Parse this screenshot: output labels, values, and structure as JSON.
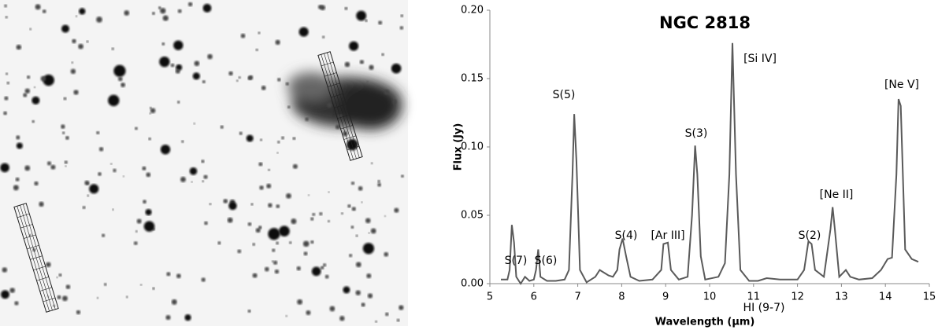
{
  "chart_data": {
    "type": "line",
    "title": "NGC 2818",
    "x_label": "Wavelength (μm)",
    "y_label": "Flux (Jy)",
    "x": [
      5.25,
      5.4,
      5.45,
      5.5,
      5.55,
      5.6,
      5.7,
      5.8,
      5.9,
      6.0,
      6.05,
      6.1,
      6.15,
      6.3,
      6.5,
      6.7,
      6.8,
      6.88,
      6.92,
      6.97,
      7.05,
      7.2,
      7.4,
      7.5,
      7.6,
      7.7,
      7.8,
      7.9,
      7.95,
      8.02,
      8.1,
      8.2,
      8.4,
      8.7,
      8.9,
      8.95,
      9.05,
      9.12,
      9.3,
      9.5,
      9.6,
      9.67,
      9.72,
      9.8,
      9.9,
      10.2,
      10.35,
      10.45,
      10.52,
      10.6,
      10.7,
      10.9,
      11.1,
      11.3,
      11.6,
      12.0,
      12.15,
      12.25,
      12.32,
      12.4,
      12.6,
      12.75,
      12.8,
      12.85,
      12.95,
      13.1,
      13.2,
      13.4,
      13.7,
      13.9,
      14.05,
      14.15,
      14.25,
      14.3,
      14.35,
      14.45,
      14.6,
      14.75
    ],
    "series": [
      {
        "color": "#5a5a5a",
        "values": [
          0.003,
          0.003,
          0.01,
          0.043,
          0.03,
          0.005,
          0.0,
          0.005,
          0.002,
          0.003,
          0.01,
          0.025,
          0.005,
          0.002,
          0.002,
          0.003,
          0.01,
          0.08,
          0.124,
          0.09,
          0.01,
          0.001,
          0.005,
          0.01,
          0.008,
          0.006,
          0.005,
          0.01,
          0.025,
          0.033,
          0.02,
          0.005,
          0.002,
          0.003,
          0.01,
          0.029,
          0.03,
          0.01,
          0.003,
          0.005,
          0.05,
          0.101,
          0.08,
          0.02,
          0.003,
          0.005,
          0.015,
          0.08,
          0.176,
          0.08,
          0.01,
          0.002,
          0.002,
          0.004,
          0.003,
          0.003,
          0.01,
          0.031,
          0.029,
          0.01,
          0.005,
          0.04,
          0.056,
          0.04,
          0.005,
          0.01,
          0.005,
          0.003,
          0.004,
          0.01,
          0.018,
          0.019,
          0.08,
          0.135,
          0.13,
          0.025,
          0.018,
          0.016
        ]
      }
    ],
    "xlim": [
      5,
      15
    ],
    "xticks": [
      5,
      6,
      7,
      8,
      9,
      10,
      11,
      12,
      13,
      14,
      15
    ],
    "ylim": [
      0,
      0.2
    ],
    "yticks": [
      {
        "value": 0,
        "label": "0.00"
      },
      {
        "value": 0.05,
        "label": "0.05"
      },
      {
        "value": 0.1,
        "label": "0.10"
      },
      {
        "value": 0.15,
        "label": "0.15"
      },
      {
        "value": 0.2,
        "label": "0.20"
      }
    ],
    "annotations": [
      "S(7)",
      "S(6)",
      "S(5)",
      "S(4)",
      "[Ar III]",
      "S(3)",
      "[Si IV]",
      "HI (9-7)",
      "S(2)",
      "[Ne II]",
      "[Ne V]"
    ]
  }
}
